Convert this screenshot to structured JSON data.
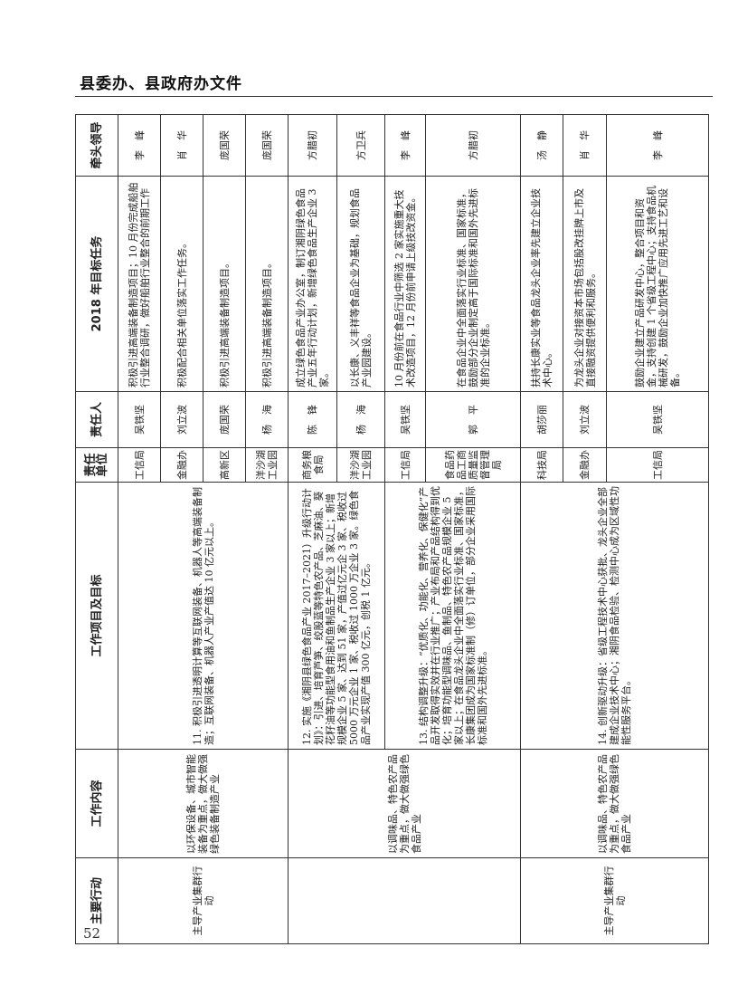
{
  "header": {
    "title": "县委办、县政府办文件"
  },
  "page_number": "52",
  "table": {
    "columns": [
      "主要行动",
      "工作内容",
      "工作项目及目标",
      "责任单位",
      "责任人",
      "2018 年目标任务",
      "牵头领导"
    ],
    "groups": [
      {
        "action": "主导产业集群行动",
        "content": "以环保设备、城市智能装备为重点，做大做强绿色装备制造产业",
        "project": "11. 积极引进透明计算等互联网装备、机器人等高端装备制造；互联网装备、机器人产业产值达 10 亿元以上。",
        "rows": [
          {
            "unit": "工信局",
            "person": "吴铁坚",
            "task": "积极引进高端装备制造项目；10 月份完成船舶行业整合调研，做好船舶行业整合的前期工作",
            "leader": "李　峰"
          },
          {
            "unit": "金融办",
            "person": "刘立波",
            "task": "积极配合相关单位落实工作任务。",
            "leader": "肖　华"
          },
          {
            "unit": "高新区",
            "person": "庞国荣",
            "task": "积极引进高端装备制造项目。",
            "leader": "庞国荣"
          },
          {
            "unit": "洋沙湖工业园",
            "person": "杨　海",
            "task": "积极引进高端装备制造项目。",
            "leader": "庞国荣"
          }
        ]
      },
      {
        "action": "",
        "content": "以调味品、特色农产品为重点，做大做强绿色食品产业",
        "project": "12. 实施《湘阴县绿色食品产业 2017–2021）升级行动计划》：引进、培育芦笋、绞股蓝等特色农产品、芝麻油、葵花籽油等功能型食用油和鱼制品生产企业 3 家以上；新增规模企业 5 家、达到 51 家，产值过亿元企 3 家、税收过 5000 万元企业 1 家、税收过 1000 万企业 3 家。绿色食品产业实现产值 300 亿元，创税 1 亿元。",
        "rows": [
          {
            "unit": "商务粮食局",
            "person": "陈　锋",
            "task": "成立绿色食品产业办公室，制订湘阴绿色食品产业五年行动计划，新增绿色食品生产企业 3 家。",
            "leader": "方腊初"
          },
          {
            "unit": "洋沙湖工业园",
            "person": "杨　海",
            "task": "以长康、义丰祥等食品企业为基础，规划食品产业园建设。",
            "leader": "方卫兵"
          }
        ]
      },
      {
        "project": "13. 结构调整升级：“优质化、功能化、营养化、保健化”产品开发取得实效并在行业推广；产业布局和产品结构得到优化；培育功能型调味品、鱼制品、特色农产品规模企业 5 家以上；在食品龙头企业中全面落实行业标准、国家标准，长康集团成为国家标准制（修）订单位，部分企业采用国际标准和国外先进标准。",
        "rows": [
          {
            "unit": "工信局",
            "person": "吴铁坚",
            "task": "10 月份前在食品行业中筛选 2 家实施重大技术改造项目，12 月份前申请上级技改资金。",
            "leader": "李　峰"
          },
          {
            "unit": "食品药品工商质量监督管理局",
            "person": "郭　平",
            "task": "在食品企业中全面落实行业标准、国家标准，鼓励部分企业制定高于国际标准和国外先进标准的企业标准。",
            "leader": "方腊初"
          }
        ]
      },
      {
        "action": "主导产业集群行动",
        "content": "以调味品、特色农产品为重点，做大做强绿色食品产业",
        "project": "14. 创新驱动升级：省级工程技术中心获批、龙头企业全部建成企业技术中心；湘阴食品检验、检测中心成为区域性功能性服务平台。",
        "rows": [
          {
            "unit": "科技局",
            "person": "胡莎丽",
            "task": "扶持长康实业等食品龙头企业率先建立企业技术中心。",
            "leader": "汤　静"
          },
          {
            "unit": "金融办",
            "person": "刘立波",
            "task": "为龙头企业对接资本市场包括股改挂牌上市及直接融资提供便利和服务。",
            "leader": "肖　华"
          },
          {
            "unit": "工信局",
            "person": "吴铁坚",
            "task": "鼓励企业建立产品研发中心，整合项目和资金，支持创建 1 个省级工程中心；支持食品机械研发，鼓励企业加快推广应用先进工艺和设备。",
            "leader": "李　峰"
          }
        ]
      }
    ]
  }
}
